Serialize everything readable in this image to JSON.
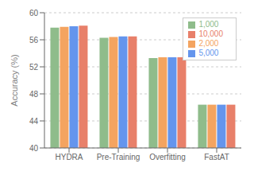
{
  "chart_data": {
    "type": "bar",
    "ylabel": "Accuracy (%)",
    "categories": [
      "HYDRA",
      "Pre-Training",
      "Overfitting",
      "FastAT"
    ],
    "series": [
      {
        "name": "1,000",
        "color": "#8fbc8b",
        "values": [
          57.8,
          56.3,
          53.3,
          46.4
        ]
      },
      {
        "name": "2,000",
        "color": "#f4a460",
        "values": [
          57.9,
          56.4,
          53.4,
          46.4
        ]
      },
      {
        "name": "5,000",
        "color": "#6495ed",
        "values": [
          58.0,
          56.5,
          53.4,
          46.4
        ]
      },
      {
        "name": "10,000",
        "color": "#e8806a",
        "values": [
          58.1,
          56.5,
          53.4,
          46.4
        ]
      }
    ],
    "ylim": [
      40,
      60
    ],
    "yticks": [
      40,
      44,
      48,
      52,
      56,
      60
    ],
    "grid": true,
    "legend": "upper right"
  }
}
